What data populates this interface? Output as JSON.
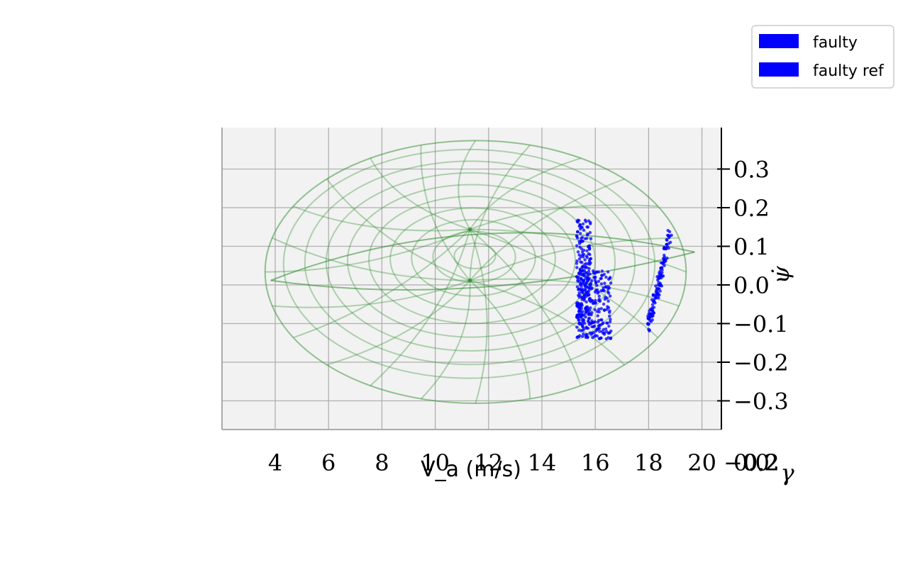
{
  "chart_data": {
    "type": "scatter",
    "projection": "3d",
    "view": "side-on, looking down the gamma axis",
    "xlabel": "V_a (m/s)",
    "ylabel": "γ",
    "zlabel": "ψ̇",
    "x_ticks": [
      4,
      6,
      8,
      10,
      12,
      14,
      16,
      18,
      20
    ],
    "x_tick_labels": [
      "4",
      "6",
      "8",
      "10",
      "12",
      "14",
      "16",
      "18",
      "20"
    ],
    "y_tick_labels_overlapping": [
      "−0.2",
      "0.0",
      "0.2"
    ],
    "z_ticks": [
      0.3,
      0.2,
      0.1,
      0.0,
      -0.1,
      -0.2,
      -0.3
    ],
    "z_tick_labels": [
      "0.3",
      "0.2",
      "0.1",
      "0.0",
      "−0.1",
      "−0.2",
      "−0.3"
    ],
    "xlim": [
      2,
      21
    ],
    "zlim": [
      -0.34,
      0.4
    ],
    "grid": true,
    "pane_color": "#f2f2f2",
    "legend": {
      "placement": "top-right",
      "entries": [
        {
          "label": "faulty",
          "color": "#0000ff"
        },
        {
          "label": "faulty ref",
          "color": "#0000ff"
        }
      ]
    },
    "envelope": {
      "shape": "wireframe ellipsoid",
      "color": "#2e8b2e",
      "center": {
        "V_a": 11.3,
        "psi_dot": 0.03
      },
      "half_width_V_a": 8.0,
      "half_height_psi_dot": 0.34
    },
    "series": [
      {
        "name": "faulty",
        "color": "#0000ff",
        "clusters": [
          {
            "V_a": [
              15.3,
              16.6
            ],
            "psi_dot": [
              -0.14,
              0.2
            ]
          },
          {
            "V_a": [
              18.0,
              18.8
            ],
            "psi_dot": [
              -0.11,
              0.13
            ]
          }
        ]
      }
    ]
  }
}
